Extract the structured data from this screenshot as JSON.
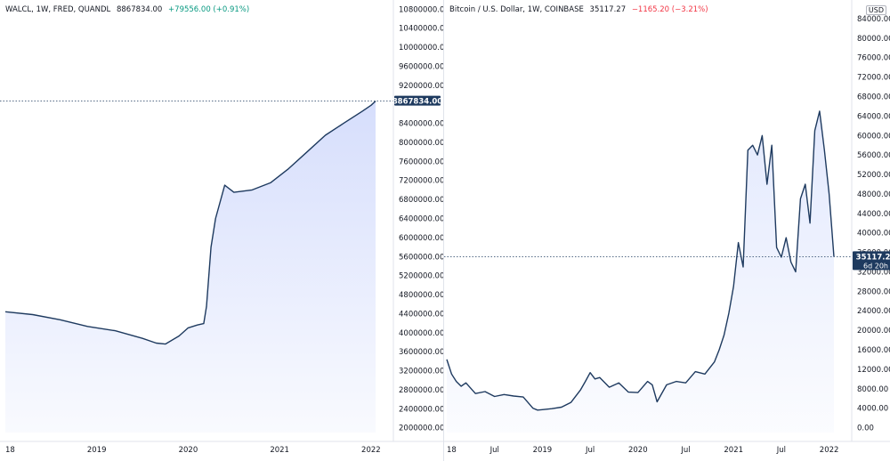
{
  "left_chart": {
    "legend": {
      "symbol": "WALCL, 1W, FRED, QUANDL",
      "value": "8867834.00",
      "change": "+79556.00 (+0.91%)"
    },
    "price_label": "8867834.00",
    "colors": {
      "line": "#1e3a5f",
      "fill": "#d6defc",
      "label_bg": "#1e3a5f"
    }
  },
  "right_chart": {
    "legend": {
      "symbol": "Bitcoin / U.S. Dollar, 1W, COINBASE",
      "value": "35117.27",
      "change": "−1165.20 (−3.21%)"
    },
    "price_label": "35117.27",
    "countdown": "6d 20h",
    "currency_badge": "USD",
    "colors": {
      "line": "#1e3a5f",
      "fill": "#e3e9fd",
      "label_bg": "#1e3a5f"
    }
  },
  "chart_data": [
    {
      "type": "area",
      "title": "WALCL, 1W, FRED, QUANDL",
      "x_ticks": [
        "18",
        "2019",
        "2020",
        "2021",
        "2022"
      ],
      "y_ticks": [
        "2000000.00",
        "2400000.00",
        "2800000.00",
        "3200000.00",
        "3600000.00",
        "4000000.00",
        "4400000.00",
        "4800000.00",
        "5200000.00",
        "5600000.00",
        "6000000.00",
        "6400000.00",
        "6800000.00",
        "7200000.00",
        "7600000.00",
        "8000000.00",
        "8400000.00",
        "9200000.00",
        "9600000.00",
        "10000000.00",
        "10400000.00",
        "10800000.00"
      ],
      "ylim": [
        1900000,
        10900000
      ],
      "xlim": [
        2018.0,
        2022.05
      ],
      "series": [
        {
          "x": [
            2018.0,
            2018.3,
            2018.6,
            2018.9,
            2019.2,
            2019.5,
            2019.65,
            2019.75,
            2019.9,
            2020.0,
            2020.1,
            2020.17,
            2020.2,
            2020.25,
            2020.3,
            2020.4,
            2020.5,
            2020.7,
            2020.9,
            2021.1,
            2021.3,
            2021.5,
            2021.7,
            2021.9,
            2022.0,
            2022.05
          ],
          "values": [
            4440000,
            4380000,
            4270000,
            4130000,
            4040000,
            3880000,
            3780000,
            3760000,
            3930000,
            4100000,
            4160000,
            4190000,
            4550000,
            5800000,
            6400000,
            7100000,
            6950000,
            7000000,
            7150000,
            7450000,
            7800000,
            8150000,
            8400000,
            8650000,
            8780000,
            8867834
          ]
        }
      ]
    },
    {
      "type": "area",
      "title": "Bitcoin / U.S. Dollar, 1W, COINBASE",
      "x_ticks": [
        "18",
        "Jul",
        "2019",
        "Jul",
        "2020",
        "Jul",
        "2021",
        "Jul",
        "2022"
      ],
      "y_ticks": [
        "0.00",
        "4000.00",
        "8000.00",
        "12000.00",
        "16000.00",
        "20000.00",
        "24000.00",
        "28000.00",
        "32000.00",
        "36000.00",
        "40000.00",
        "44000.00",
        "48000.00",
        "52000.00",
        "56000.00",
        "60000.00",
        "64000.00",
        "68000.00",
        "72000.00",
        "76000.00",
        "80000.00",
        "84000.00"
      ],
      "ylim": [
        -1000,
        86000
      ],
      "xlim": [
        2018.0,
        2022.05
      ],
      "series": [
        {
          "x": [
            2018.0,
            2018.05,
            2018.1,
            2018.15,
            2018.2,
            2018.3,
            2018.4,
            2018.5,
            2018.6,
            2018.7,
            2018.8,
            2018.9,
            2018.95,
            2019.0,
            2019.1,
            2019.2,
            2019.3,
            2019.4,
            2019.45,
            2019.5,
            2019.55,
            2019.6,
            2019.7,
            2019.8,
            2019.9,
            2020.0,
            2020.1,
            2020.15,
            2020.2,
            2020.3,
            2020.4,
            2020.5,
            2020.6,
            2020.7,
            2020.8,
            2020.85,
            2020.9,
            2020.95,
            2021.0,
            2021.05,
            2021.1,
            2021.15,
            2021.2,
            2021.25,
            2021.3,
            2021.35,
            2021.4,
            2021.45,
            2021.5,
            2021.55,
            2021.6,
            2021.65,
            2021.7,
            2021.75,
            2021.8,
            2021.85,
            2021.9,
            2021.95,
            2022.0,
            2022.05
          ],
          "values": [
            14000,
            11000,
            9500,
            8500,
            9200,
            7000,
            7400,
            6400,
            6800,
            6500,
            6300,
            4000,
            3600,
            3700,
            3900,
            4200,
            5200,
            7800,
            9500,
            11300,
            10000,
            10300,
            8300,
            9200,
            7300,
            7200,
            9500,
            8800,
            5300,
            8800,
            9500,
            9200,
            11500,
            11000,
            13500,
            16000,
            19000,
            23500,
            29000,
            38000,
            33000,
            57000,
            58000,
            56000,
            60000,
            50000,
            58000,
            37000,
            35000,
            39000,
            34000,
            32000,
            47000,
            50000,
            42000,
            61000,
            65000,
            57000,
            48000,
            35117
          ]
        }
      ]
    }
  ]
}
